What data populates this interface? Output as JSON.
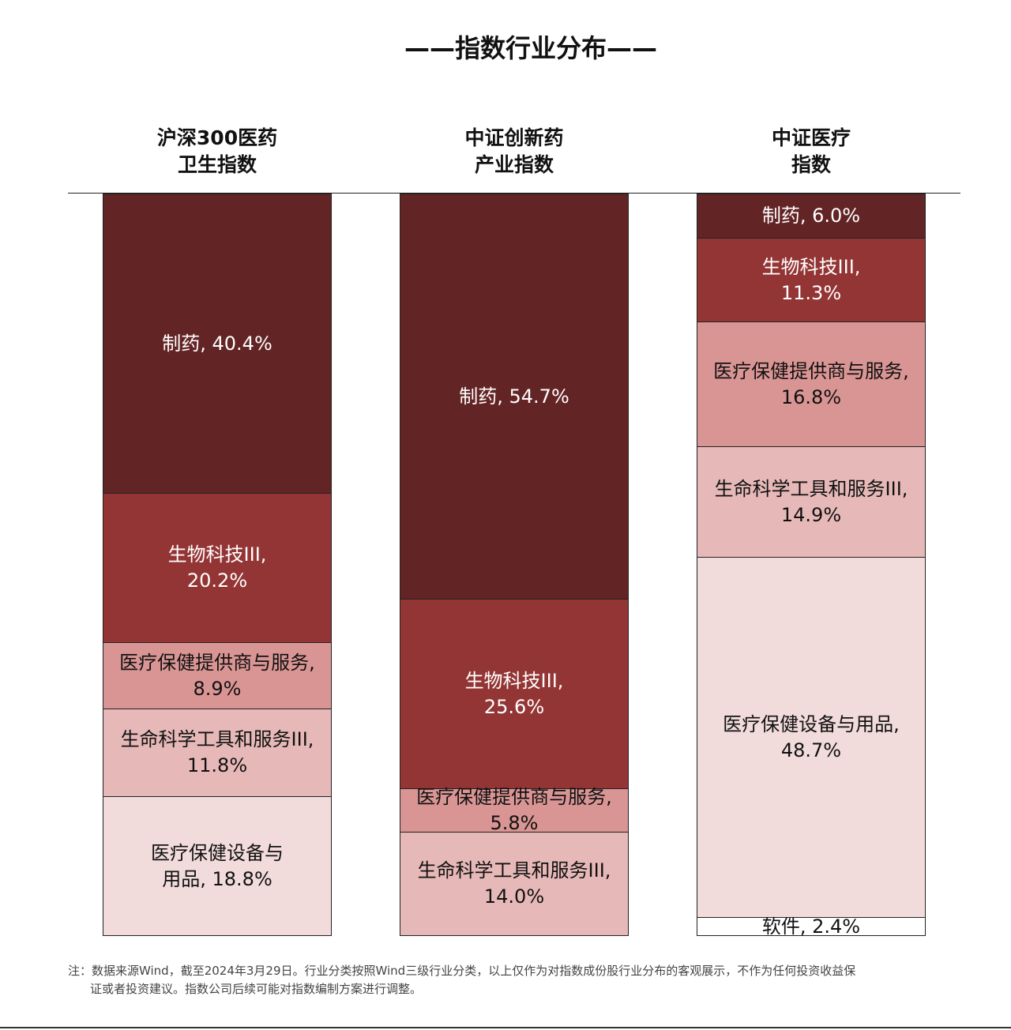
{
  "title": "——指数行业分布——",
  "chart_data": {
    "type": "bar",
    "stacked": true,
    "unit": "%",
    "columns": [
      {
        "title_lines": [
          "沪深300医药",
          "卫生指数"
        ],
        "segments": [
          {
            "name": "制药",
            "value": 40.4,
            "label_lines": [
              "制药, 40.4%"
            ]
          },
          {
            "name": "生物科技III",
            "value": 20.2,
            "label_lines": [
              "生物科技III,",
              "20.2%"
            ]
          },
          {
            "name": "医疗保健提供商与服务",
            "value": 8.9,
            "label_lines": [
              "医疗保健提供商与服务,",
              "8.9%"
            ]
          },
          {
            "name": "生命科学工具和服务III",
            "value": 11.8,
            "label_lines": [
              "生命科学工具和服务III,",
              "11.8%"
            ]
          },
          {
            "name": "医疗保健设备与用品",
            "value": 18.8,
            "label_lines": [
              "医疗保健设备与",
              "用品, 18.8%"
            ]
          }
        ]
      },
      {
        "title_lines": [
          "中证创新药",
          "产业指数"
        ],
        "segments": [
          {
            "name": "制药",
            "value": 54.7,
            "label_lines": [
              "制药, 54.7%"
            ]
          },
          {
            "name": "生物科技III",
            "value": 25.6,
            "label_lines": [
              "生物科技III,",
              "25.6%"
            ]
          },
          {
            "name": "医疗保健提供商与服务",
            "value": 5.8,
            "label_lines": [
              "医疗保健提供商与服务,",
              "5.8%"
            ]
          },
          {
            "name": "生命科学工具和服务III",
            "value": 14.0,
            "label_lines": [
              "生命科学工具和服务III,",
              "14.0%"
            ]
          }
        ]
      },
      {
        "title_lines": [
          "中证医疗",
          "指数"
        ],
        "segments": [
          {
            "name": "制药",
            "value": 6.0,
            "label_lines": [
              "制药, 6.0%"
            ]
          },
          {
            "name": "生物科技III",
            "value": 11.3,
            "label_lines": [
              "生物科技III,",
              "11.3%"
            ]
          },
          {
            "name": "医疗保健提供商与服务",
            "value": 16.8,
            "label_lines": [
              "医疗保健提供商与服务,",
              "16.8%"
            ]
          },
          {
            "name": "生命科学工具和服务III",
            "value": 14.9,
            "label_lines": [
              "生命科学工具和服务III,",
              "14.9%"
            ]
          },
          {
            "name": "医疗保健设备与用品",
            "value": 48.7,
            "label_lines": [
              "医疗保健设备与用品,",
              "48.7%"
            ]
          },
          {
            "name": "软件",
            "value": 2.4,
            "label_lines": [
              "软件, 2.4%"
            ]
          }
        ]
      }
    ],
    "colors": {
      "制药": "#632425",
      "生物科技III": "#943535",
      "医疗保健提供商与服务": "#d99594",
      "生命科学工具和服务III": "#e6b9b8",
      "医疗保健设备与用品": "#f2dcdb",
      "软件": "#ffffff"
    },
    "label_colors": {
      "制药": "#ffffff",
      "生物科技III": "#ffffff",
      "医疗保健提供商与服务": "#111111",
      "生命科学工具和服务III": "#111111",
      "医疗保健设备与用品": "#111111",
      "软件": "#111111"
    }
  },
  "footnote": {
    "line1": "注：数据来源Wind，截至2024年3月29日。行业分类按照Wind三级行业分类，以上仅作为对指数成份股行业分布的客观展示，不作为任何投资收益保",
    "line2": "证或者投资建议。指数公司后续可能对指数编制方案进行调整。"
  }
}
